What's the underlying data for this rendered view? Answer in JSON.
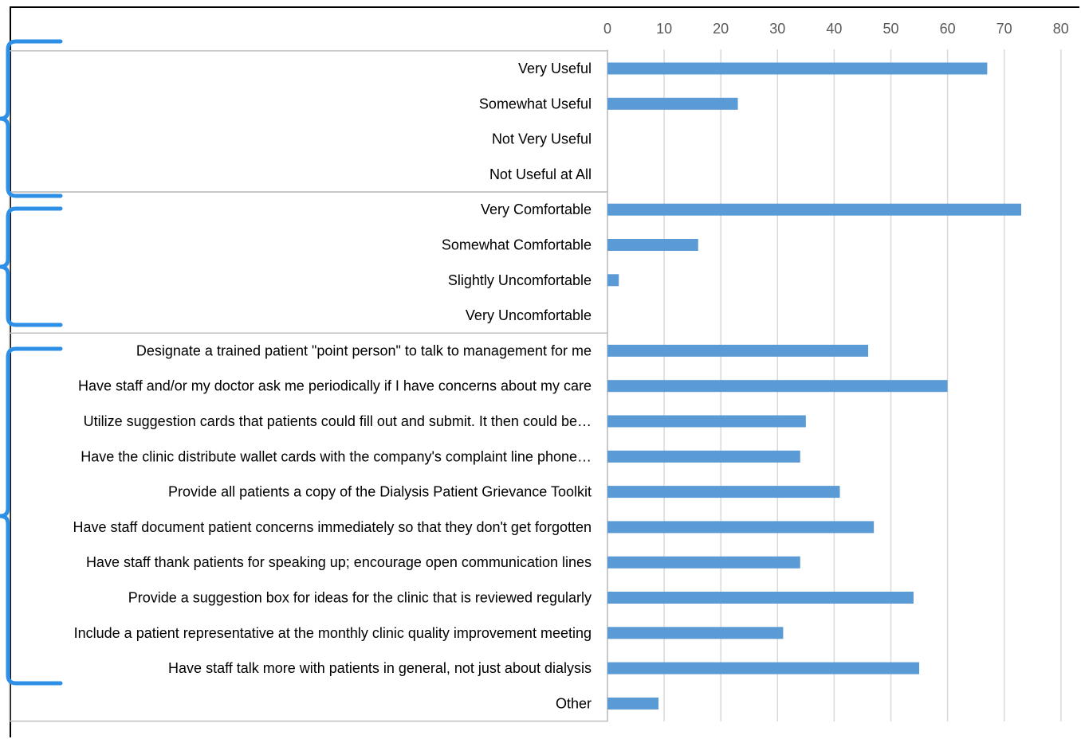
{
  "chart_data": {
    "type": "bar",
    "orientation": "horizontal",
    "title": "",
    "xlabel": "",
    "ylabel": "",
    "xlim": [
      0,
      80
    ],
    "xticks": [
      0,
      10,
      20,
      30,
      40,
      50,
      60,
      70,
      80
    ],
    "grid": true,
    "bar_color": "#5b9bd5",
    "bracket_color": "#2e8fe6",
    "categories": [
      "Very Useful",
      "Somewhat Useful",
      "Not Very Useful",
      "Not Useful at All",
      "Very Comfortable",
      "Somewhat Comfortable",
      "Slightly Uncomfortable",
      "Very Uncomfortable",
      "Designate a trained patient \"point person\" to talk to management for me",
      "Have staff and/or my doctor ask me periodically if I have concerns about my care",
      "Utilize suggestion cards that patients could fill out and submit. It then could be…",
      "Have the clinic distribute wallet cards with the company's complaint line phone…",
      "Provide all patients a copy of the Dialysis Patient Grievance Toolkit",
      "Have staff document patient concerns immediately so that they don't get forgotten",
      "Have staff thank patients for speaking up; encourage open communication lines",
      "Provide a suggestion box for ideas for the clinic that is reviewed regularly",
      "Include a patient representative at the monthly clinic quality improvement meeting",
      "Have staff talk more with patients in general, not just about dialysis",
      "Other"
    ],
    "values": [
      67,
      23,
      0,
      0,
      73,
      16,
      2,
      0,
      46,
      60,
      35,
      34,
      41,
      47,
      34,
      54,
      31,
      55,
      9
    ],
    "groups": [
      {
        "start": 0,
        "end": 3
      },
      {
        "start": 4,
        "end": 7
      },
      {
        "start": 8,
        "end": 18
      }
    ]
  }
}
